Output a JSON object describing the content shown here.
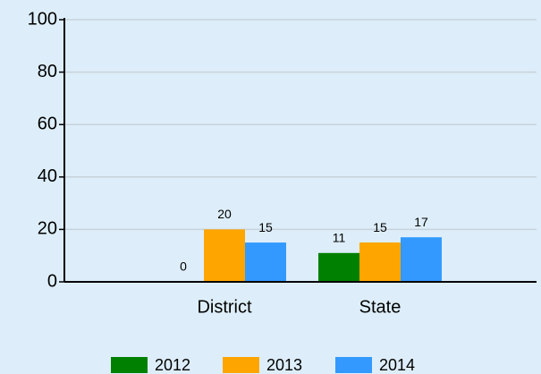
{
  "chart_data": {
    "type": "bar",
    "categories": [
      "District",
      "State"
    ],
    "series": [
      {
        "name": "2012",
        "color": "#008000",
        "values": [
          0,
          11
        ]
      },
      {
        "name": "2013",
        "color": "#ffa500",
        "values": [
          20,
          15
        ]
      },
      {
        "name": "2014",
        "color": "#3399ff",
        "values": [
          15,
          17
        ]
      }
    ],
    "ylim": [
      0,
      100
    ],
    "yticks": [
      0,
      20,
      40,
      60,
      80,
      100
    ],
    "grid": true
  }
}
